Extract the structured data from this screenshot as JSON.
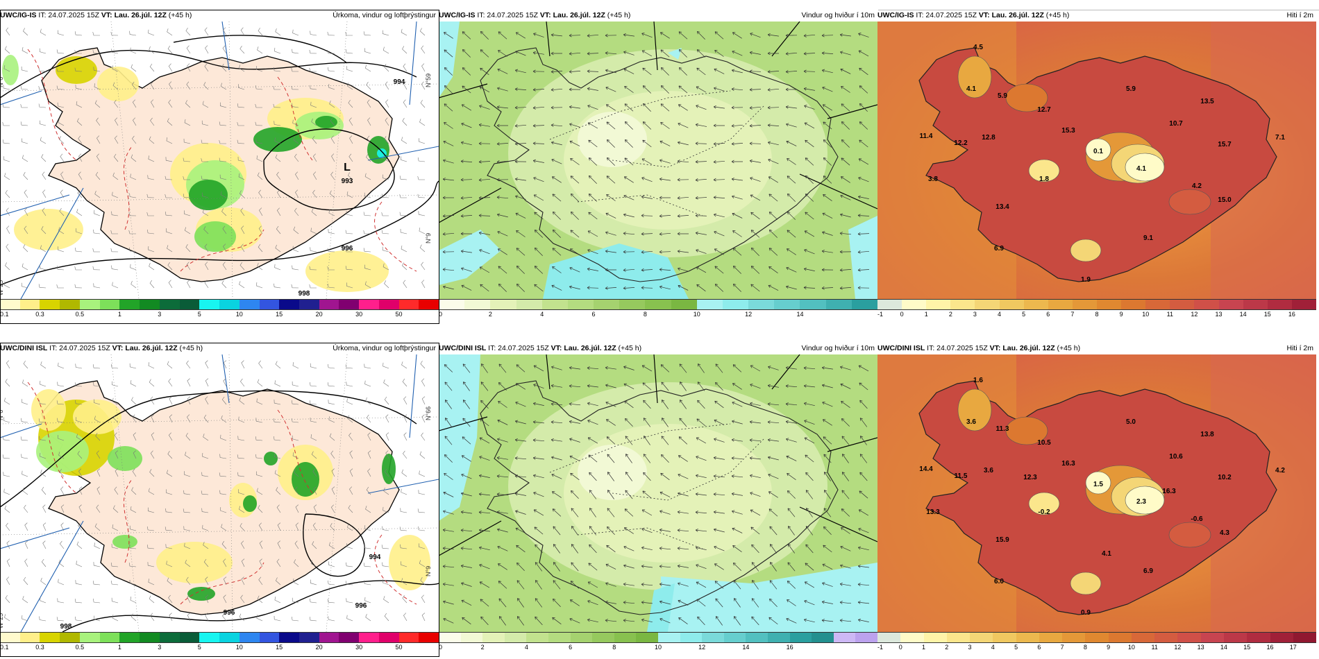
{
  "rows": [
    {
      "model": "UWC/IG-IS",
      "it": "IT: 24.07.2025 15Z",
      "vt_label": "VT:",
      "vt": "Lau. 26.júl. 12Z",
      "lead": "(+45 h)",
      "panels": {
        "precip": {
          "title": "Úrkoma, vindur og loftþrýstingur",
          "pressure_labels": [
            {
              "text": "L",
              "big": true
            },
            {
              "text": "993"
            },
            {
              "text": "994"
            },
            {
              "text": "996"
            },
            {
              "text": "998"
            }
          ],
          "grid_labels": [
            "N°59",
            "N°9",
            "N°6",
            "W°25"
          ]
        },
        "wind": {
          "title": "Vindur og hviður í 10m"
        },
        "temp": {
          "title": "Hiti í 2m",
          "values": [
            "4.5",
            "4.1",
            "5.9",
            "11.4",
            "12.2",
            "12.8",
            "12.7",
            "15.3",
            "5.9",
            "13.5",
            "10.7",
            "15.7",
            "7.1",
            "3.8",
            "4.1",
            "0.1",
            "1.8",
            "4.2",
            "15.0",
            "13.4",
            "9.1",
            "6.9",
            "1.9"
          ]
        }
      }
    },
    {
      "model": "UWC/DINI ISL",
      "it": "IT: 24.07.2025 15Z",
      "vt_label": "VT:",
      "vt": "Lau. 26.júl. 12Z",
      "lead": "(+45 h)",
      "panels": {
        "precip": {
          "title": "Úrkoma, vindur og loftþrýstingur",
          "pressure_labels": [
            {
              "text": "998"
            },
            {
              "text": "996"
            },
            {
              "text": "994"
            },
            {
              "text": "996"
            }
          ],
          "grid_labels": [
            "N°66",
            "N°9",
            "N°6",
            "W°25"
          ]
        },
        "wind": {
          "title": "Vindur og hviður í 10m"
        },
        "temp": {
          "title": "Hiti í 2m",
          "values": [
            "1.6",
            "3.6",
            "11.3",
            "14.4",
            "11.5",
            "3.6",
            "10.5",
            "16.3",
            "5.0",
            "13.8",
            "10.6",
            "10.2",
            "4.2",
            "13.3",
            "2.3",
            "1.5",
            "-0.2",
            "-0.6",
            "4.3",
            "15.9",
            "6.9",
            "6.0",
            "0.9",
            "12.3",
            "16.3",
            "4.1"
          ]
        }
      }
    }
  ],
  "colorbars": {
    "precip": {
      "colors": [
        "#fffacd",
        "#ffef8a",
        "#d8d400",
        "#b0b800",
        "#a8f27d",
        "#7de05a",
        "#22a428",
        "#128a22",
        "#0c6c3a",
        "#0a5c38",
        "#18f5f0",
        "#0ad3e0",
        "#2e86f0",
        "#3355e0",
        "#0a0a8a",
        "#202090",
        "#a01590",
        "#800070",
        "#ff1f8c",
        "#e0006a",
        "#ff2a2a",
        "#e80000"
      ],
      "labels": [
        "0.1",
        "0.3",
        "0.5",
        "1",
        "3",
        "5",
        "10",
        "15",
        "20",
        "30",
        "50"
      ]
    },
    "wind_top": {
      "colors": [
        "#fbfcea",
        "#f2f9d5",
        "#e4f2b8",
        "#d4ebaa",
        "#c2e28e",
        "#b4dc80",
        "#a5d26f",
        "#96c95e",
        "#88c14f",
        "#7ab742",
        "#a8f2f2",
        "#8eecec",
        "#7adada",
        "#66cece",
        "#52c0c0",
        "#3fb0b0",
        "#2a9f9f"
      ],
      "labels": [
        "0",
        "2",
        "4",
        "6",
        "8",
        "10",
        "12",
        "14"
      ]
    },
    "wind_bottom": {
      "colors": [
        "#fbfcea",
        "#f2f9d5",
        "#e4f2b8",
        "#d4ebaa",
        "#c2e28e",
        "#b4dc80",
        "#a5d26f",
        "#96c95e",
        "#88c14f",
        "#7ab742",
        "#a8f2f2",
        "#8eecec",
        "#7adada",
        "#66cece",
        "#52c0c0",
        "#3fb0b0",
        "#2a9f9f",
        "#23908f",
        "#cdb8f5",
        "#bca2ee"
      ],
      "labels": [
        "0",
        "2",
        "4",
        "6",
        "8",
        "10",
        "12",
        "14",
        "16"
      ]
    },
    "temp_top": {
      "colors": [
        "#dce8dc",
        "#fffbc8",
        "#fff4a8",
        "#fbe68c",
        "#f4d676",
        "#f0c860",
        "#ecb84e",
        "#e8a840",
        "#e49838",
        "#e08830",
        "#dc7830",
        "#d86838",
        "#d45c40",
        "#d05048",
        "#c84450",
        "#bc3848",
        "#b02c40",
        "#a02038"
      ],
      "labels": [
        "-1",
        "0",
        "1",
        "2",
        "3",
        "4",
        "5",
        "6",
        "7",
        "8",
        "9",
        "10",
        "11",
        "12",
        "13",
        "14",
        "15",
        "16"
      ]
    },
    "temp_bottom": {
      "colors": [
        "#dce8dc",
        "#fffbc8",
        "#fff4a8",
        "#fbe68c",
        "#f4d676",
        "#f0c860",
        "#ecb84e",
        "#e8a840",
        "#e49838",
        "#e08830",
        "#dc7830",
        "#d86838",
        "#d45c40",
        "#d05048",
        "#c84450",
        "#bc3848",
        "#b02c40",
        "#a02038",
        "#901830"
      ],
      "labels": [
        "-1",
        "0",
        "1",
        "2",
        "3",
        "4",
        "5",
        "6",
        "7",
        "8",
        "9",
        "10",
        "11",
        "12",
        "13",
        "14",
        "15",
        "16",
        "17"
      ]
    }
  }
}
